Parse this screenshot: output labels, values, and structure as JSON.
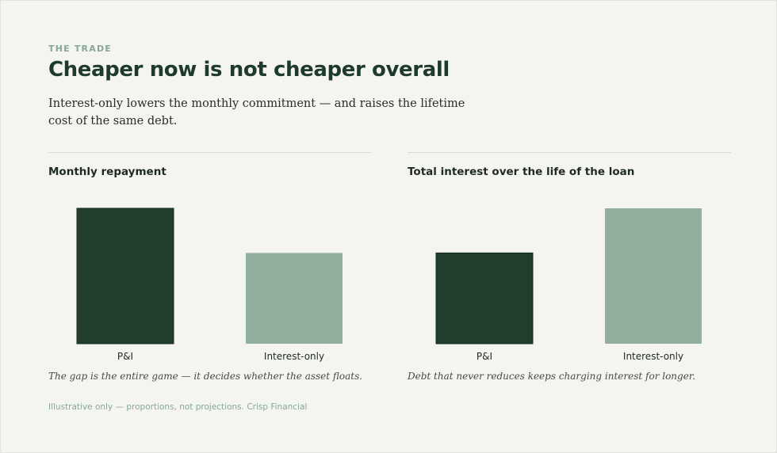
{
  "header": {
    "eyebrow": "THE TRADE",
    "title": "Cheaper now is not cheaper overall",
    "subtitle": "Interest-only lowers the monthly commitment — and raises the lifetime cost of the same debt."
  },
  "colors": {
    "dark_green": "#213d2c",
    "sage_green": "#92b09d",
    "background": "#f4f4f1"
  },
  "chart_data": [
    {
      "type": "bar",
      "title": "Monthly repayment",
      "categories": [
        "P&I",
        "Interest-only"
      ],
      "values": [
        1.0,
        0.67
      ],
      "ylim": [
        0,
        1.0
      ],
      "grid": false,
      "bar_colors": [
        "#213d2c",
        "#92b09d"
      ],
      "annotation": "The gap is the entire game — it decides whether the asset floats."
    },
    {
      "type": "bar",
      "title": "Total interest over the life of the loan",
      "categories": [
        "P&I",
        "Interest-only"
      ],
      "values": [
        0.67,
        1.0
      ],
      "ylim": [
        0,
        1.0
      ],
      "grid": false,
      "bar_colors": [
        "#213d2c",
        "#92b09d"
      ],
      "annotation": "Debt that never reduces keeps charging interest for longer."
    }
  ],
  "footer": {
    "note": "Illustrative only — proportions, not projections. Crisp Financial"
  }
}
